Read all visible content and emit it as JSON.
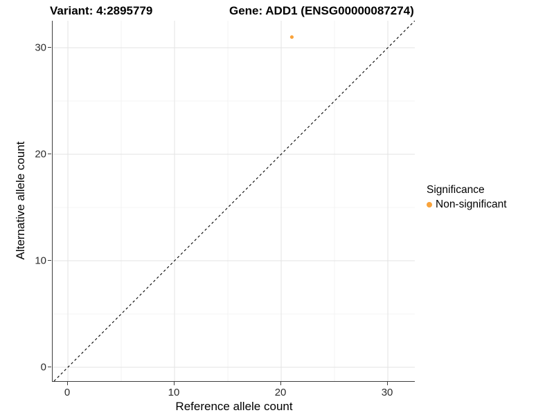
{
  "titles": {
    "left": "Variant: 4:2895779",
    "right": "Gene: ADD1 (ENSG00000087274)"
  },
  "axes": {
    "x_label": "Reference allele count",
    "y_label": "Alternative allele count",
    "x_ticks": [
      0,
      10,
      20,
      30
    ],
    "y_ticks": [
      0,
      10,
      20,
      30
    ]
  },
  "legend": {
    "title": "Significance",
    "items": [
      {
        "label": "Non-significant",
        "color": "#F9A33B"
      }
    ]
  },
  "chart_data": {
    "type": "scatter",
    "title_left": "Variant: 4:2895779",
    "title_right": "Gene: ADD1 (ENSG00000087274)",
    "xlabel": "Reference allele count",
    "ylabel": "Alternative allele count",
    "xlim": [
      -1.43,
      32.53
    ],
    "ylim": [
      -1.3,
      32.53
    ],
    "x_ticks": [
      0,
      10,
      20,
      30
    ],
    "y_ticks": [
      0,
      10,
      20,
      30
    ],
    "x_minor_ticks": [
      5,
      15,
      25
    ],
    "y_minor_ticks": [
      5,
      15,
      25
    ],
    "grid": "on",
    "legend_position": "right",
    "points": [
      {
        "x": 21,
        "y": 31,
        "series": "Non-significant"
      }
    ],
    "identity_line": {
      "type": "abline",
      "slope": 1,
      "intercept": 0,
      "style": "dashed",
      "color": "#000000"
    },
    "colors": {
      "major_grid": "#E3E3E3",
      "minor_grid": "#F0F0F0",
      "axis": "#3c3c3c",
      "point_non_significant": "#F9A33B"
    }
  }
}
